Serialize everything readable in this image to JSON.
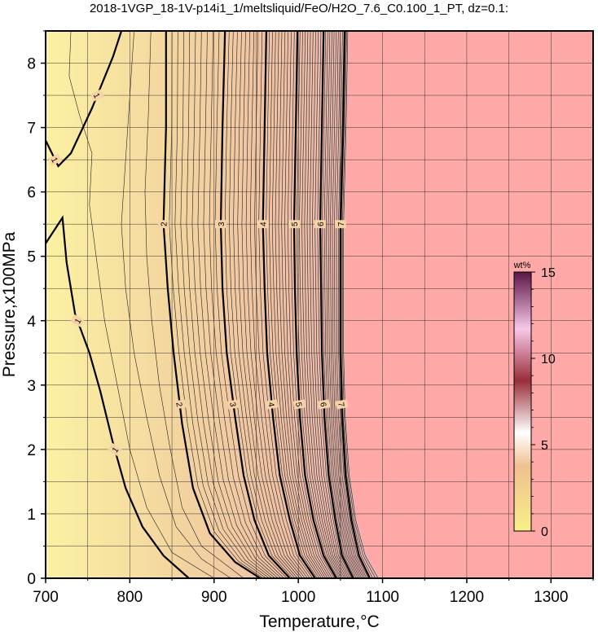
{
  "title": "2018-1VGP_18-1V-p14i1_1/meltsliquid/FeO/H2O_7.6_C0.100_1_PT, dz=0.1:",
  "chart_data": {
    "type": "heatmap",
    "xlabel": "Temperature,°C",
    "ylabel": "Pressure,x100MPa",
    "xlim": [
      700,
      1350
    ],
    "ylim": [
      0,
      8.5
    ],
    "x_ticks": [
      700,
      800,
      900,
      1000,
      1100,
      1200,
      1300
    ],
    "y_ticks": [
      0,
      1,
      2,
      3,
      4,
      5,
      6,
      7,
      8
    ],
    "x_tick_labels": [
      "700",
      "800",
      "900",
      "1000",
      "1100",
      "1200",
      "1300"
    ],
    "y_tick_labels": [
      "0",
      "1",
      "2",
      "3",
      "4",
      "5",
      "6",
      "7",
      "8"
    ],
    "grid": true,
    "background_above_liquidus_color": "#ffa8a8",
    "colorbar": {
      "unit": "wt%",
      "range": [
        0,
        15
      ],
      "ticks": [
        0,
        5,
        10,
        15
      ],
      "tick_labels": [
        "0",
        "5",
        "10",
        "15"
      ],
      "colors": [
        "#f7f08a",
        "#f0c090",
        "#ffffff",
        "#9a2e3a",
        "#f8c8e8",
        "#5a1545"
      ]
    },
    "contours": [
      {
        "level": 1,
        "label": "1",
        "points": [
          [
            700,
            5.2
          ],
          [
            720,
            5.6
          ],
          [
            725,
            4.9
          ],
          [
            735,
            4.1
          ],
          [
            752,
            3.5
          ],
          [
            765,
            2.9
          ],
          [
            780,
            2.1
          ],
          [
            795,
            1.4
          ],
          [
            815,
            0.8
          ],
          [
            840,
            0.35
          ],
          [
            870,
            0.0
          ]
        ]
      },
      {
        "level": 1,
        "label": "1",
        "points": [
          [
            700,
            6.8
          ],
          [
            715,
            6.4
          ],
          [
            730,
            6.6
          ],
          [
            755,
            7.3
          ],
          [
            780,
            8.1
          ],
          [
            790,
            8.5
          ]
        ]
      },
      {
        "level": 2,
        "label": "2",
        "points": [
          [
            843,
            8.5
          ],
          [
            843,
            7.0
          ],
          [
            840,
            5.5
          ],
          [
            845,
            4.5
          ],
          [
            852,
            3.5
          ],
          [
            862,
            2.4
          ],
          [
            875,
            1.4
          ],
          [
            895,
            0.7
          ],
          [
            925,
            0.25
          ],
          [
            955,
            0.0
          ]
        ]
      },
      {
        "level": 3,
        "label": "3",
        "points": [
          [
            913,
            8.5
          ],
          [
            910,
            7.0
          ],
          [
            908,
            5.5
          ],
          [
            910,
            4.5
          ],
          [
            915,
            3.5
          ],
          [
            925,
            2.5
          ],
          [
            935,
            1.6
          ],
          [
            948,
            0.9
          ],
          [
            965,
            0.35
          ],
          [
            990,
            0.0
          ]
        ]
      },
      {
        "level": 4,
        "label": "4",
        "points": [
          [
            962,
            8.5
          ],
          [
            960,
            7.0
          ],
          [
            958,
            5.5
          ],
          [
            960,
            4.5
          ],
          [
            963,
            3.5
          ],
          [
            970,
            2.5
          ],
          [
            978,
            1.6
          ],
          [
            990,
            0.9
          ],
          [
            1002,
            0.35
          ],
          [
            1020,
            0.0
          ]
        ]
      },
      {
        "level": 5,
        "label": "5",
        "points": [
          [
            999,
            8.5
          ],
          [
            997,
            7.0
          ],
          [
            995,
            5.5
          ],
          [
            996,
            4.5
          ],
          [
            998,
            3.5
          ],
          [
            1002,
            2.5
          ],
          [
            1008,
            1.6
          ],
          [
            1018,
            0.9
          ],
          [
            1030,
            0.35
          ],
          [
            1045,
            0.0
          ]
        ]
      },
      {
        "level": 6,
        "label": "6",
        "points": [
          [
            1030,
            8.5
          ],
          [
            1028,
            7.0
          ],
          [
            1026,
            5.5
          ],
          [
            1027,
            4.5
          ],
          [
            1028,
            3.5
          ],
          [
            1031,
            2.5
          ],
          [
            1036,
            1.6
          ],
          [
            1044,
            0.9
          ],
          [
            1052,
            0.35
          ],
          [
            1065,
            0.0
          ]
        ]
      },
      {
        "level": 7,
        "label": "7",
        "points": [
          [
            1055,
            8.5
          ],
          [
            1053,
            7.0
          ],
          [
            1050,
            5.5
          ],
          [
            1050,
            4.5
          ],
          [
            1050,
            3.5
          ],
          [
            1052,
            2.5
          ],
          [
            1056,
            1.6
          ],
          [
            1063,
            0.9
          ],
          [
            1072,
            0.35
          ],
          [
            1085,
            0.0
          ]
        ]
      }
    ],
    "liquidus_boundary": [
      [
        1060,
        8.5
      ],
      [
        1058,
        7.0
      ],
      [
        1055,
        5.5
      ],
      [
        1055,
        4.5
      ],
      [
        1055,
        3.5
      ],
      [
        1057,
        2.5
      ],
      [
        1062,
        1.6
      ],
      [
        1070,
        0.9
      ],
      [
        1082,
        0.35
      ],
      [
        1098,
        0.0
      ]
    ]
  }
}
